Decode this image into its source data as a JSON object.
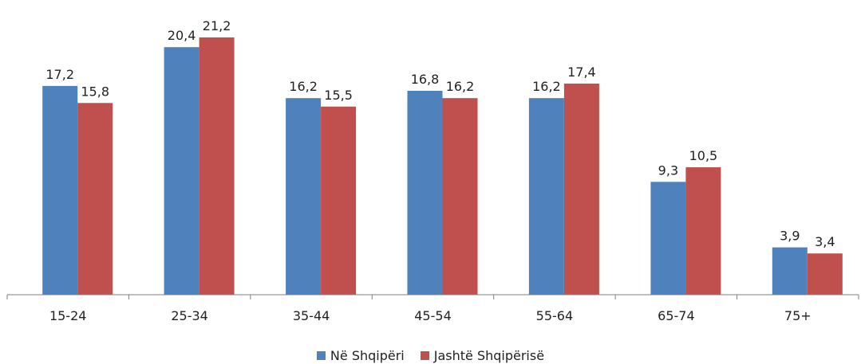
{
  "chart_data": {
    "type": "bar",
    "categories": [
      "15-24",
      "25-34",
      "35-44",
      "45-54",
      "55-64",
      "65-74",
      "75+"
    ],
    "series": [
      {
        "name": "Në Shqipëri",
        "values": [
          17.2,
          20.4,
          16.2,
          16.8,
          16.2,
          9.3,
          3.9
        ],
        "labels": [
          "17,2",
          "20,4",
          "16,2",
          "16,8",
          "16,2",
          "9,3",
          "3,9"
        ],
        "color": "#4F81BD"
      },
      {
        "name": "Jashtë Shqipërisë",
        "values": [
          15.8,
          21.2,
          15.5,
          16.2,
          17.4,
          10.5,
          3.4
        ],
        "labels": [
          "15,8",
          "21,2",
          "15,5",
          "16,2",
          "17,4",
          "10,5",
          "3,4"
        ],
        "color": "#C0504D"
      }
    ],
    "ylim": [
      0,
      21.2
    ],
    "grid": false,
    "legend": "bottom"
  }
}
